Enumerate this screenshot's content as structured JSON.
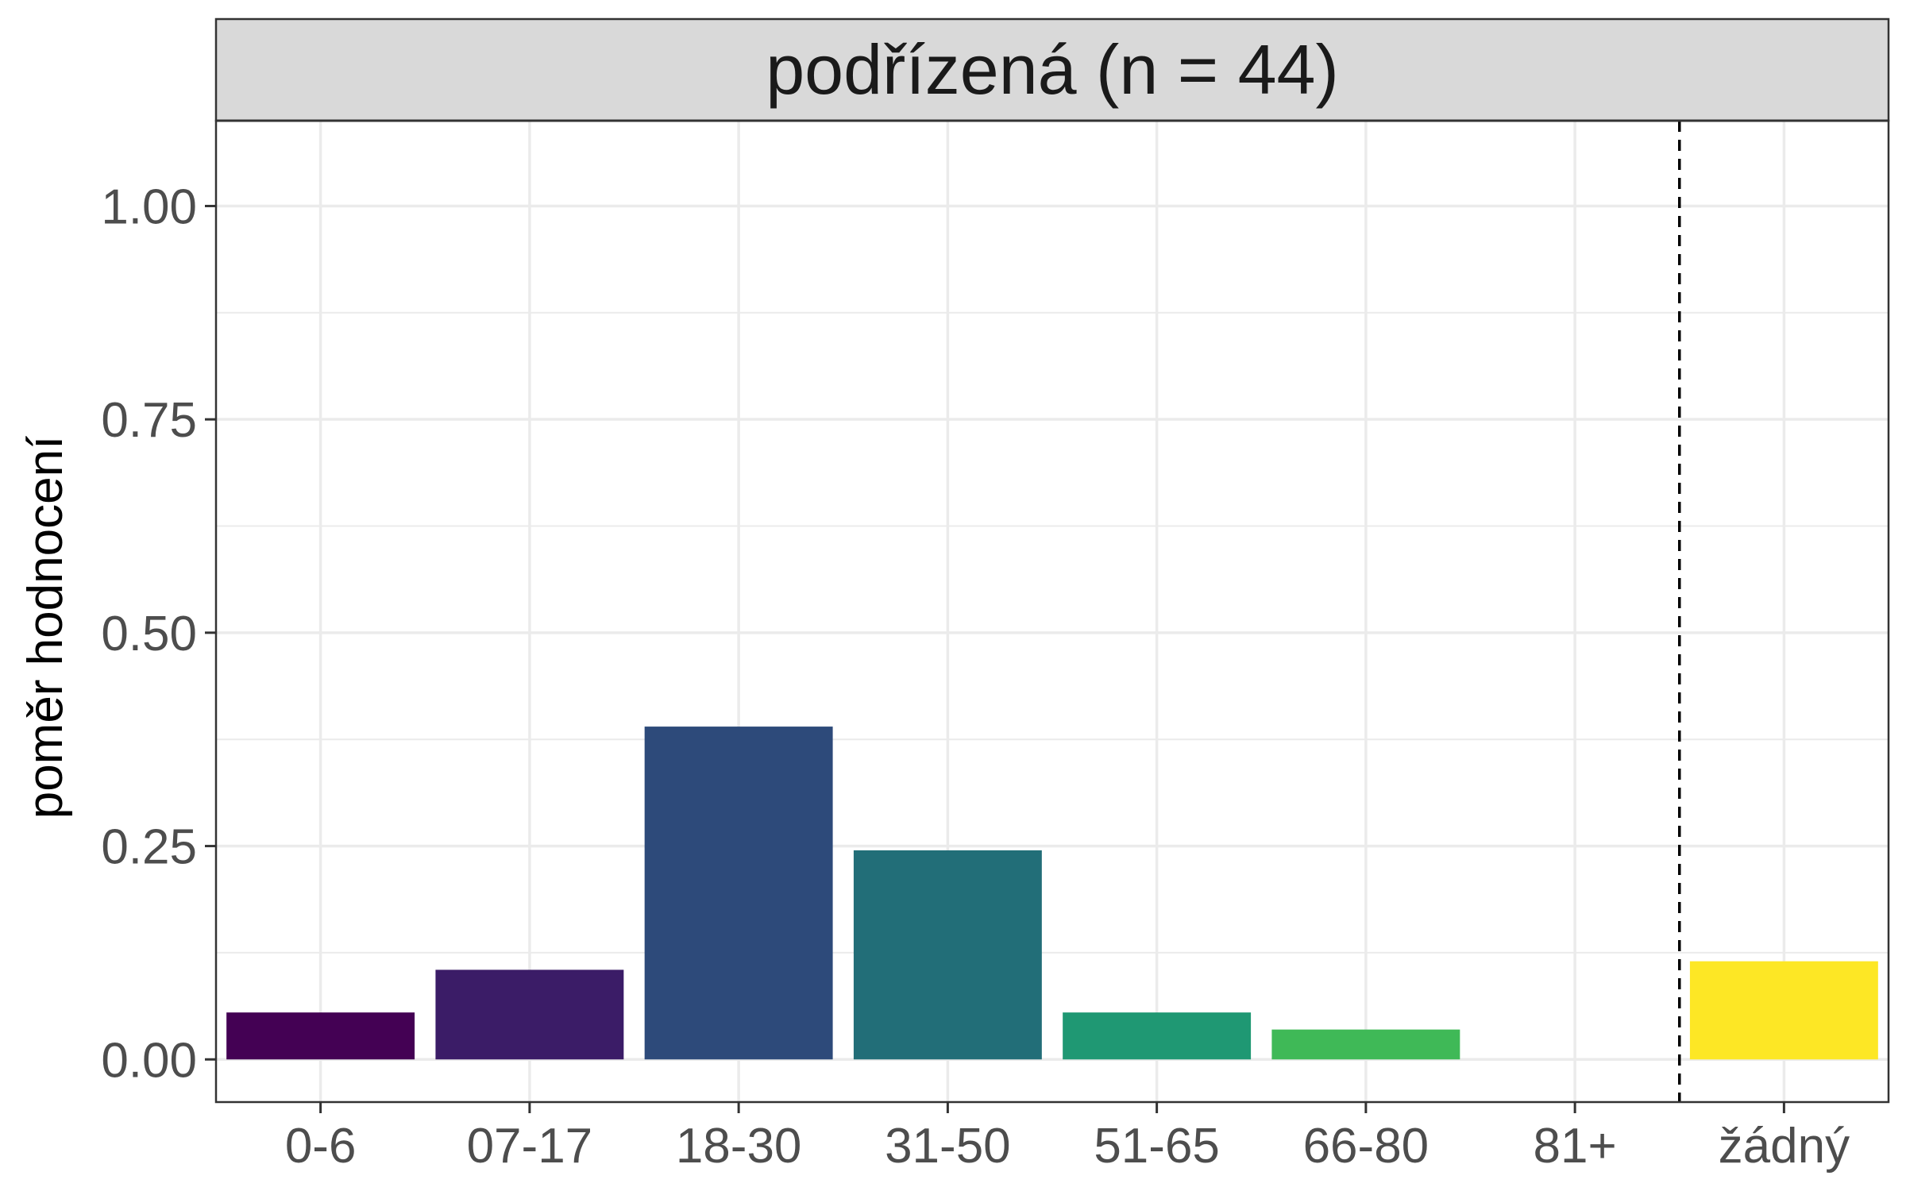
{
  "chart_data": {
    "type": "bar",
    "facet_title": "podřízená (n = 44)",
    "ylabel": "poměr hodnocení",
    "xlabel": "",
    "categories": [
      "0-6",
      "07-17",
      "18-30",
      "31-50",
      "51-65",
      "66-80",
      "81+",
      "žádný"
    ],
    "values": [
      0.055,
      0.105,
      0.39,
      0.245,
      0.055,
      0.035,
      0.0,
      0.115
    ],
    "colors": [
      "#440154",
      "#3B1C67",
      "#2D4A7A",
      "#226E78",
      "#1F9873",
      "#3FB957",
      "#AADC32",
      "#FDE725"
    ],
    "ylim": [
      -0.05,
      1.1
    ],
    "yticks": [
      "0.00",
      "0.25",
      "0.50",
      "0.75",
      "1.00"
    ],
    "ytick_values": [
      0,
      0.25,
      0.5,
      0.75,
      1.0
    ],
    "reference_line": {
      "style": "dashed",
      "between": [
        "81+",
        "žádný"
      ]
    },
    "grid": true,
    "legend": "none"
  }
}
